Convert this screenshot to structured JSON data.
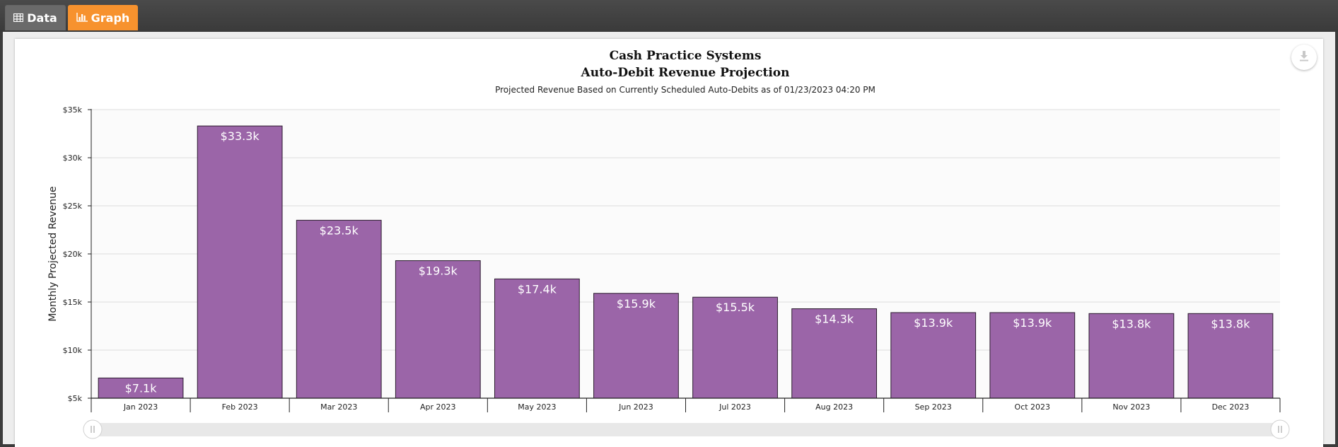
{
  "tabs": [
    {
      "label": "Data",
      "icon": "table-icon",
      "active": false
    },
    {
      "label": "Graph",
      "icon": "bar-chart-icon",
      "active": true
    }
  ],
  "colors": {
    "tab_active": "#f7922e",
    "tab_inactive": "#6a6a6a",
    "bar_fill": "#9b65a8",
    "bar_stroke": "#2b1b2e"
  },
  "download_icon": "download-icon",
  "chart_data": {
    "type": "bar",
    "title": "Cash Practice Systems",
    "subtitle": "Auto-Debit Revenue Projection",
    "caption": "Projected Revenue Based on Currently Scheduled Auto-Debits as of 01/23/2023 04:20 PM",
    "ylabel": "Monthly Projected Revenue",
    "xlabel": "",
    "ylim": [
      5000,
      35000
    ],
    "yticks": [
      5000,
      10000,
      15000,
      20000,
      25000,
      30000,
      35000
    ],
    "ytick_labels": [
      "$5k",
      "$10k",
      "$15k",
      "$20k",
      "$25k",
      "$30k",
      "$35k"
    ],
    "categories": [
      "Jan 2023",
      "Feb 2023",
      "Mar 2023",
      "Apr 2023",
      "May 2023",
      "Jun 2023",
      "Jul 2023",
      "Aug 2023",
      "Sep 2023",
      "Oct 2023",
      "Nov 2023",
      "Dec 2023"
    ],
    "values": [
      7100,
      33300,
      23500,
      19300,
      17400,
      15900,
      15500,
      14300,
      13900,
      13900,
      13800,
      13800
    ],
    "data_labels": [
      "$7.1k",
      "$33.3k",
      "$23.5k",
      "$19.3k",
      "$17.4k",
      "$15.9k",
      "$15.5k",
      "$14.3k",
      "$13.9k",
      "$13.9k",
      "$13.8k",
      "$13.8k"
    ],
    "grid": true,
    "legend": "none"
  }
}
